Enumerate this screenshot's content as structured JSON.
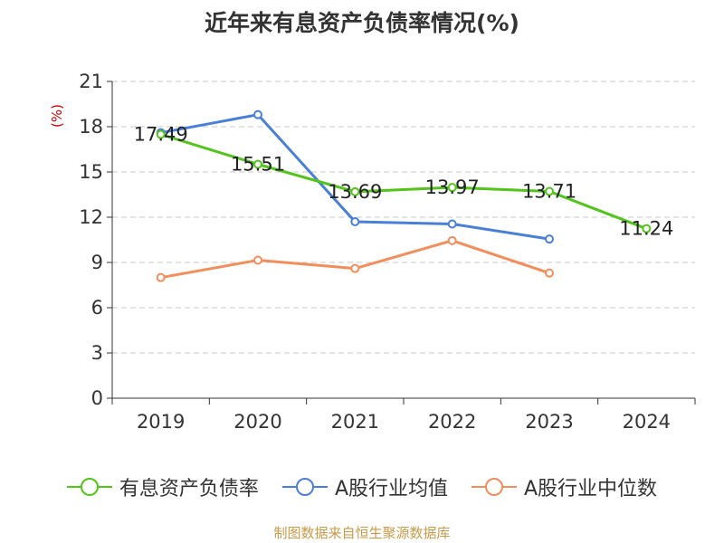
{
  "chart_data": {
    "type": "line",
    "title": "近年来有息资产负债率情况(%)",
    "ylabel": "(%)",
    "xlabel": "",
    "categories": [
      "2019",
      "2020",
      "2021",
      "2022",
      "2023",
      "2024"
    ],
    "ylim": [
      0,
      21
    ],
    "yticks": [
      0,
      3,
      6,
      9,
      12,
      15,
      18,
      21
    ],
    "grid": true,
    "legend_position": "bottom",
    "series": [
      {
        "name": "有息资产负债率",
        "color": "#52c41a",
        "values": [
          17.49,
          15.51,
          13.69,
          13.97,
          13.71,
          11.24
        ],
        "data_labels": [
          "17.49",
          "15.51",
          "13.69",
          "13.97",
          "13.71",
          "11.24"
        ]
      },
      {
        "name": "A股行业均值",
        "color": "#4a7fd8",
        "values": [
          17.6,
          18.8,
          11.7,
          11.55,
          10.55,
          null
        ]
      },
      {
        "name": "A股行业中位数",
        "color": "#f28e5c",
        "values": [
          8.0,
          9.15,
          8.6,
          10.45,
          8.3,
          null
        ]
      }
    ]
  },
  "source": "制图数据来自恒生聚源数据库"
}
